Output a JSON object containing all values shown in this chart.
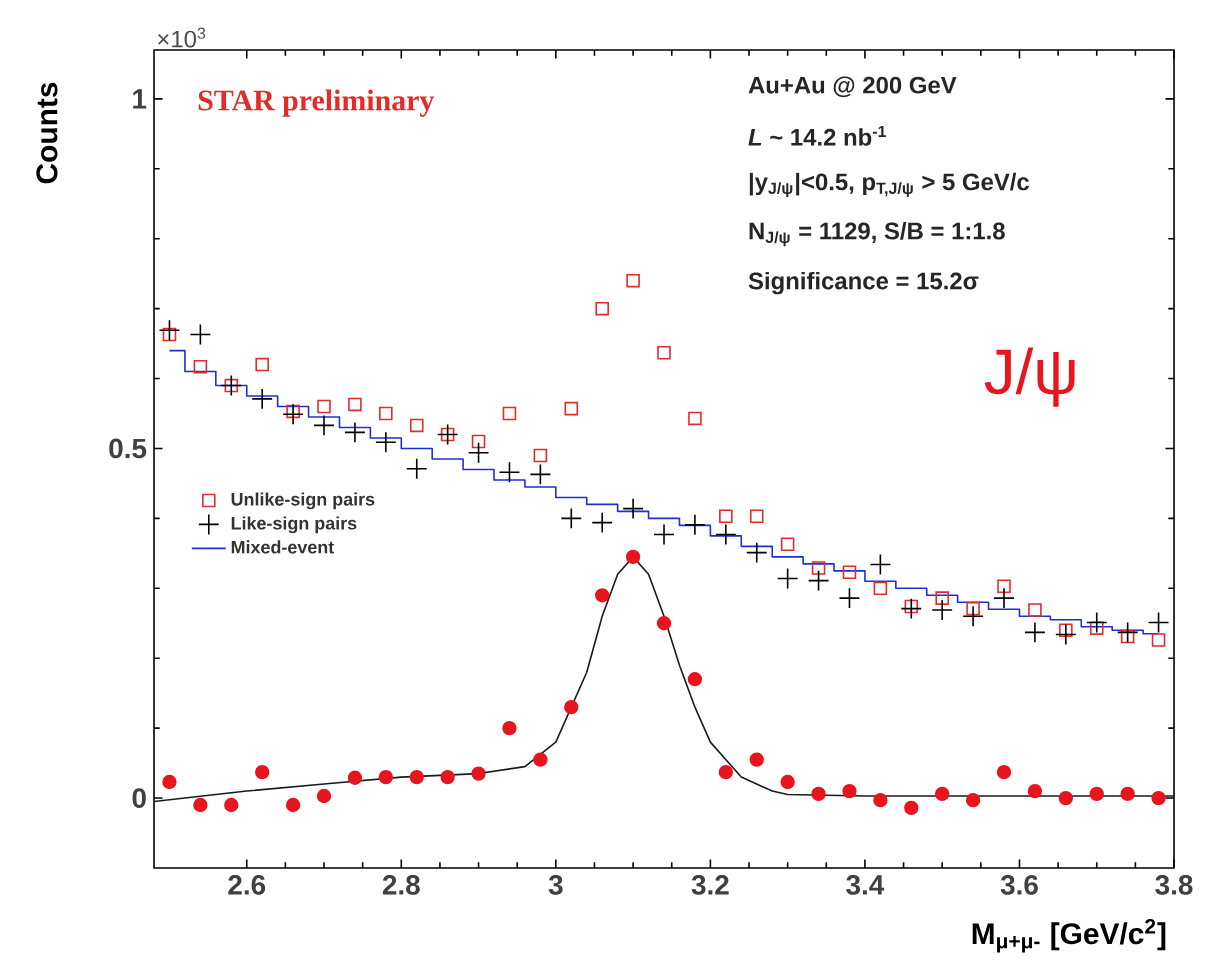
{
  "chart_data": {
    "type": "scatter",
    "xlabel": "M$_{μ+μ-}$ [GeV/c$^{2}$]",
    "ylabel": "Counts",
    "annotations": [
      "×10$^{3}$",
      "STAR preliminary",
      "Au+Au @ 200 GeV",
      "*L* ~ 14.2 nb$^{-1}$",
      "|y$_{J/ψ}$|<0.5, p$_{T,J/ψ}$ > 5 GeV/c",
      "N$_{J/ψ}$ = 1129, S/B = 1:1.8",
      "Significance = 15.2σ",
      "J/ψ"
    ],
    "x": [
      2.5,
      2.54,
      2.58,
      2.62,
      2.66,
      2.7,
      2.74,
      2.78,
      2.82,
      2.86,
      2.9,
      2.94,
      2.98,
      3.02,
      3.06,
      3.1,
      3.14,
      3.18,
      3.22,
      3.26,
      3.3,
      3.34,
      3.38,
      3.42,
      3.46,
      3.5,
      3.54,
      3.58,
      3.62,
      3.66,
      3.7,
      3.74,
      3.78
    ],
    "series": [
      {
        "name": "Unlike-sign pairs",
        "marker": "square",
        "color": "#e52a2a",
        "values": [
          0.663,
          0.617,
          0.59,
          0.62,
          0.553,
          0.56,
          0.563,
          0.55,
          0.533,
          0.52,
          0.51,
          0.55,
          0.49,
          0.557,
          0.7,
          0.74,
          0.637,
          0.543,
          0.403,
          0.403,
          0.363,
          0.329,
          0.323,
          0.3,
          0.274,
          0.286,
          0.271,
          0.303,
          0.269,
          0.24,
          0.243,
          0.231,
          0.226
        ]
      },
      {
        "name": "Like-sign pairs",
        "marker": "cross",
        "color": "#000000",
        "values": [
          0.669,
          0.663,
          0.59,
          0.571,
          0.549,
          0.533,
          0.523,
          0.509,
          0.471,
          0.52,
          0.494,
          0.466,
          0.463,
          0.4,
          0.394,
          0.414,
          0.377,
          0.391,
          0.377,
          0.351,
          0.314,
          0.311,
          0.286,
          0.334,
          0.271,
          0.269,
          0.26,
          0.286,
          0.237,
          0.234,
          0.251,
          0.237,
          0.251
        ]
      },
      {
        "name": "Mixed-event",
        "type": "step",
        "marker": "none",
        "color": "#1f2fd6",
        "values": [
          0.64,
          0.61,
          0.59,
          0.575,
          0.56,
          0.545,
          0.53,
          0.515,
          0.5,
          0.485,
          0.47,
          0.455,
          0.445,
          0.43,
          0.42,
          0.41,
          0.4,
          0.39,
          0.375,
          0.36,
          0.345,
          0.335,
          0.325,
          0.31,
          0.3,
          0.29,
          0.28,
          0.27,
          0.26,
          0.255,
          0.245,
          0.24,
          0.235
        ]
      },
      {
        "marker": "circle",
        "color": "#e8141e",
        "values": [
          0.023,
          -0.01,
          -0.01,
          0.037,
          -0.01,
          0.003,
          0.029,
          0.03,
          0.03,
          0.03,
          0.035,
          0.1,
          0.055,
          0.13,
          0.29,
          0.345,
          0.25,
          0.17,
          0.037,
          0.055,
          0.023,
          0.006,
          0.01,
          -0.003,
          -0.014,
          0.006,
          -0.003,
          0.037,
          0.01,
          0.0,
          0.006,
          0.006,
          0.0
        ]
      },
      {
        "type": "line",
        "marker": "none",
        "color": "#1a1a1a",
        "x": [
          2.48,
          2.6,
          2.7,
          2.8,
          2.9,
          2.96,
          3.0,
          3.04,
          3.06,
          3.08,
          3.1,
          3.12,
          3.14,
          3.16,
          3.18,
          3.2,
          3.24,
          3.28,
          3.3,
          3.4,
          3.6,
          3.8
        ],
        "values": [
          -0.005,
          0.01,
          0.02,
          0.03,
          0.035,
          0.045,
          0.08,
          0.18,
          0.26,
          0.32,
          0.345,
          0.32,
          0.26,
          0.19,
          0.13,
          0.08,
          0.03,
          0.01,
          0.005,
          0.003,
          0.003,
          0.003
        ]
      }
    ],
    "xlim": [
      2.48,
      3.8
    ],
    "ylim": [
      -0.1,
      1.07
    ],
    "xticks": [
      2.6,
      2.8,
      3,
      3.2,
      3.4,
      3.6,
      3.8
    ],
    "yticks": [
      0,
      0.5,
      1
    ],
    "legend": "left"
  }
}
